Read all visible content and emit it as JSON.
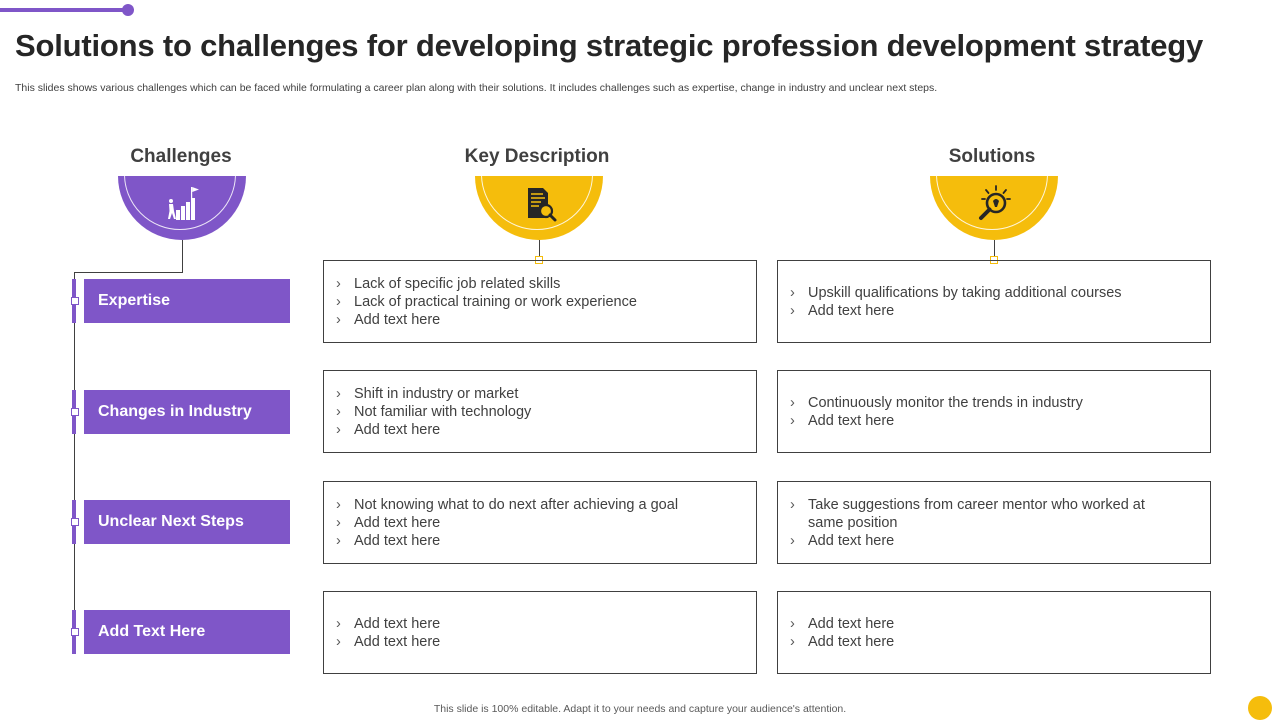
{
  "title": "Solutions to challenges for developing strategic profession development strategy",
  "subtitle": "This slides shows various challenges which can be faced while formulating a career plan along with their solutions. It includes challenges such as expertise, change in industry and unclear next steps.",
  "columns": {
    "challenges": "Challenges",
    "description": "Key Description",
    "solutions": "Solutions"
  },
  "icons": {
    "challenges": "stairs-goal-icon",
    "description": "document-search-icon",
    "solutions": "lightbulb-search-icon"
  },
  "bullet_glyph": "›",
  "rows": [
    {
      "label": "Expertise",
      "description": [
        "Lack of specific job related skills",
        "Lack of practical training or work experience",
        "Add text here"
      ],
      "solutions": [
        "Upskill qualifications by taking additional courses",
        "Add text here"
      ]
    },
    {
      "label": "Changes in Industry",
      "description": [
        "Shift in industry or market",
        "Not familiar with technology",
        "Add text here"
      ],
      "solutions": [
        "Continuously monitor the trends in industry",
        "Add text here"
      ]
    },
    {
      "label": "Unclear Next Steps",
      "description": [
        "Not knowing what to do next after achieving a goal",
        "Add text here",
        "Add text here"
      ],
      "solutions": [
        "Take suggestions from career mentor who worked at same position",
        "Add text here"
      ]
    },
    {
      "label": "Add Text Here",
      "description": [
        "Add text here",
        "Add text here"
      ],
      "solutions": [
        "Add text here",
        "Add text here"
      ]
    }
  ],
  "footer": "This slide is 100% editable. Adapt it to your needs and capture your audience's attention.",
  "colors": {
    "purple": "#7f56c8",
    "yellow": "#f5bd0c",
    "text": "#404040"
  }
}
